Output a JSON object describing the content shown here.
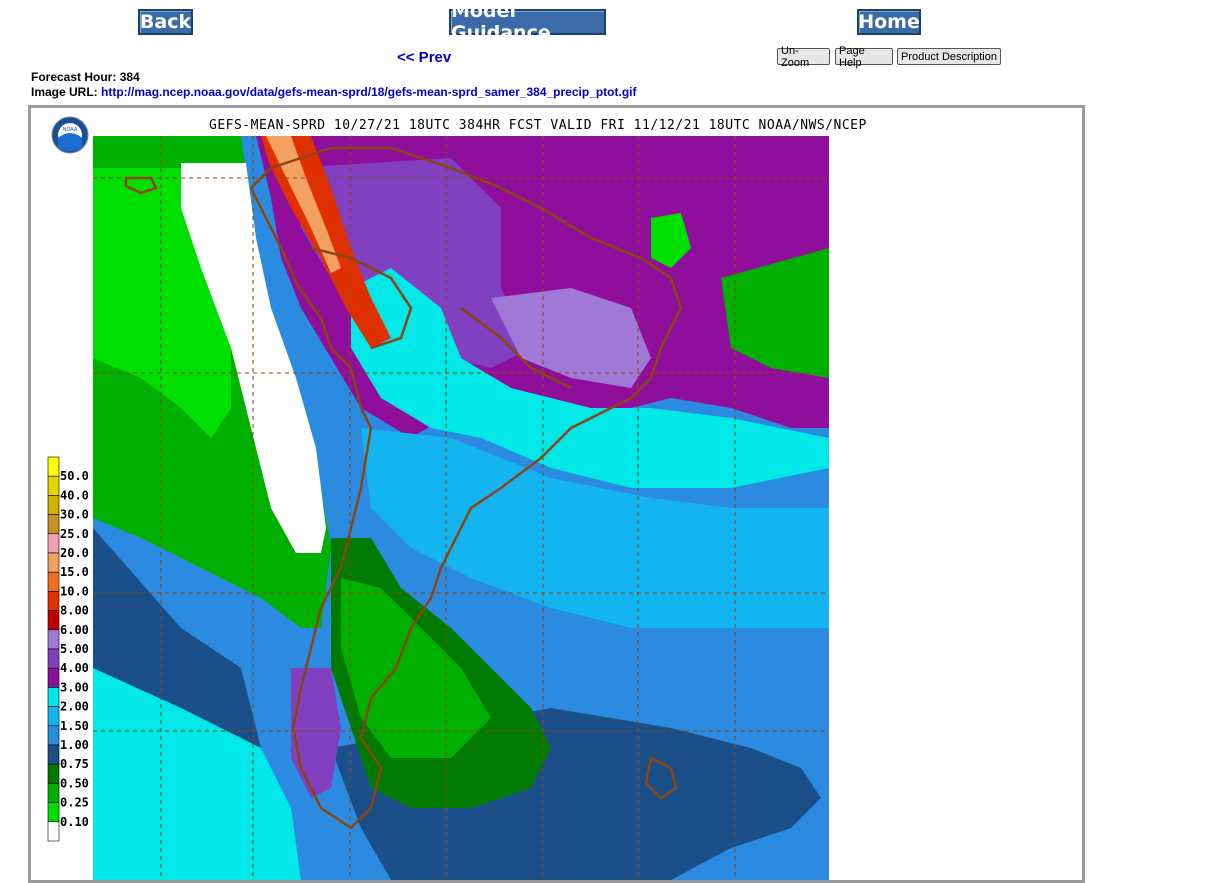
{
  "nav": {
    "back_label": "Back",
    "guidance_label": "Model Guidance",
    "home_label": "Home",
    "prev_label": "<< Prev",
    "unzoom_label": "Un-Zoom",
    "help_label": "Page Help",
    "description_label": "Product Description"
  },
  "info": {
    "forecast_hour_label": "Forecast Hour:",
    "forecast_hour": "384",
    "image_url_label": "Image URL:",
    "image_url": "http://mag.ncep.noaa.gov/data/gefs-mean-sprd/18/gefs-mean-sprd_samer_384_precip_ptot.gif"
  },
  "map": {
    "title": "GEFS-MEAN-SPRD 10/27/21 18UTC 384HR FCST VALID FRI 11/12/21 18UTC NOAA/NWS/NCEP",
    "logo_text": "NOAA",
    "legend": [
      {
        "label": "50.0",
        "color": "#ffff00"
      },
      {
        "label": "40.0",
        "color": "#e6d600"
      },
      {
        "label": "30.0",
        "color": "#d4b000"
      },
      {
        "label": "25.0",
        "color": "#c89020"
      },
      {
        "label": "20.0",
        "color": "#f4a0b4"
      },
      {
        "label": "15.0",
        "color": "#f4a060"
      },
      {
        "label": "10.0",
        "color": "#f07020"
      },
      {
        "label": "8.00",
        "color": "#e03000"
      },
      {
        "label": "6.00",
        "color": "#c00000"
      },
      {
        "label": "5.00",
        "color": "#9f78d8"
      },
      {
        "label": "4.00",
        "color": "#8040c0"
      },
      {
        "label": "3.00",
        "color": "#8f0e9b"
      },
      {
        "label": "2.00",
        "color": "#00e8e8"
      },
      {
        "label": "1.50",
        "color": "#14b4f0"
      },
      {
        "label": "1.00",
        "color": "#2a8be0"
      },
      {
        "label": "0.75",
        "color": "#1a4f8a"
      },
      {
        "label": "0.50",
        "color": "#007a00"
      },
      {
        "label": "0.25",
        "color": "#00b000"
      },
      {
        "label": "0.10",
        "color": "#00e000"
      },
      {
        "label": "",
        "color": "#ffffff"
      }
    ]
  }
}
